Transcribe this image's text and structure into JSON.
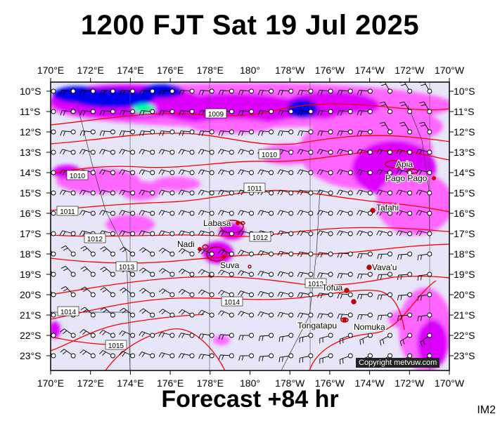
{
  "header": {
    "title": "1200 FJT Sat 19 Jul 2025"
  },
  "footer": {
    "forecast": "Forecast +84 hr",
    "image_tag": "IM2",
    "copyright": "Copyright metvuw.com"
  },
  "colors": {
    "background": "#e6e6f8",
    "rain_light": "#ff66ff",
    "rain_medium": "#dd00ff",
    "rain_heavy": "#0000ee",
    "rain_extreme": "#00ffaa",
    "isobar": "#ff0000",
    "land": "#a00000",
    "wind": "#000000"
  },
  "axes": {
    "lon_labels": [
      "170°E",
      "172°E",
      "174°E",
      "176°E",
      "178°E",
      "180°",
      "178°W",
      "176°W",
      "174°W",
      "172°W",
      "170°W"
    ],
    "lat_labels": [
      "10°S",
      "11°S",
      "12°S",
      "13°S",
      "14°S",
      "15°S",
      "16°S",
      "17°S",
      "18°S",
      "19°S",
      "20°S",
      "21°S",
      "22°S",
      "23°S"
    ]
  },
  "isobar_labels": [
    "1009",
    "1010",
    "1010",
    "1011",
    "1011",
    "1012",
    "1012",
    "1013",
    "1013",
    "1014",
    "1014",
    "1015"
  ],
  "places": [
    "Apia",
    "Pago Pago",
    "Tafahi",
    "Labasa",
    "Nadi",
    "Suva",
    "Vava'u",
    "Tofua",
    "Nomuka",
    "Tongatapu"
  ]
}
